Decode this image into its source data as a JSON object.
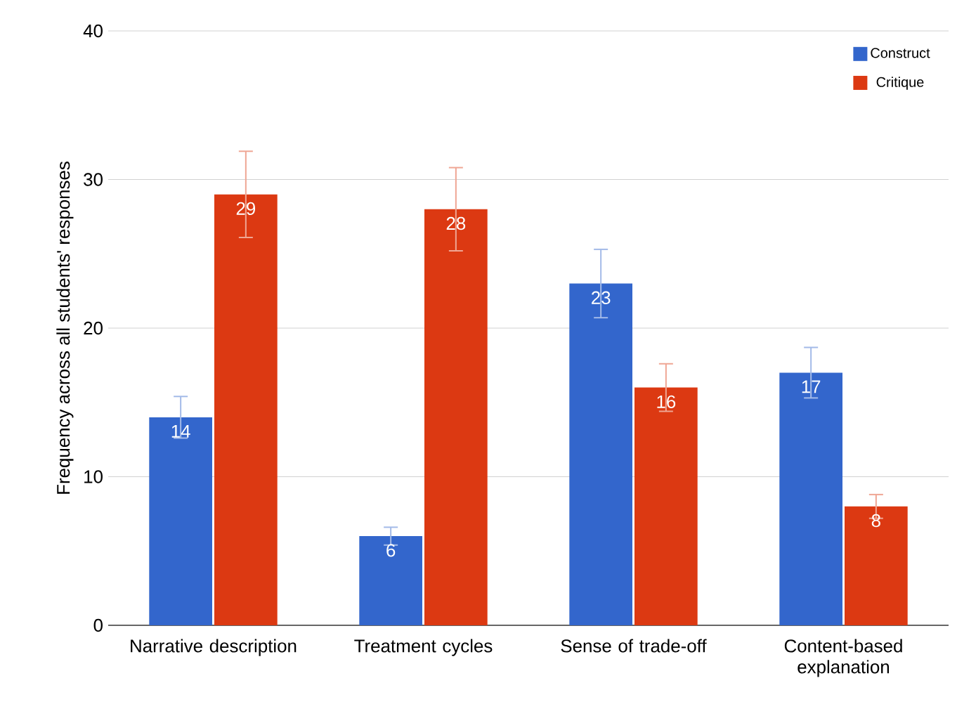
{
  "chart_data": {
    "type": "bar",
    "ylabel": "Frequency across all students' responses",
    "categories": [
      "Narrative description",
      "Treatment cycles",
      "Sense of trade-off",
      "Content-based explanation"
    ],
    "series": [
      {
        "name": "Construct",
        "color": "#3366cc",
        "values": [
          14,
          6,
          23,
          17
        ],
        "errors": [
          1.4,
          0.6,
          2.3,
          1.7
        ]
      },
      {
        "name": "Critique",
        "color": "#dc3912",
        "values": [
          29,
          28,
          16,
          8
        ],
        "errors": [
          2.9,
          2.8,
          1.6,
          0.8
        ]
      }
    ],
    "ylim": [
      0,
      40
    ],
    "yticks": [
      0,
      10,
      20,
      30,
      40
    ],
    "grid": "y",
    "legend": "top right",
    "data_labels": true
  }
}
